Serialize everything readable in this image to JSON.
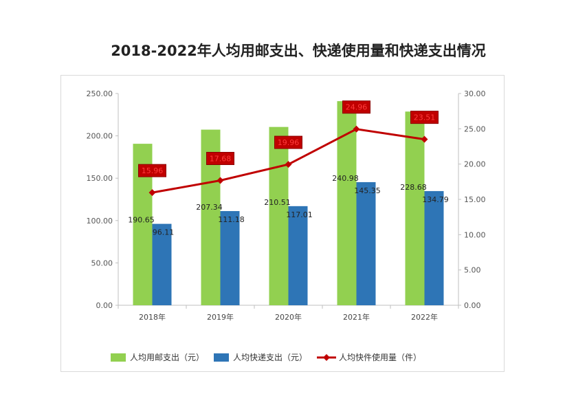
{
  "page": {
    "title": "2018-2022年人均用邮支出、快递使用量和快递支出情况"
  },
  "chart_data": {
    "type": "bar",
    "title": "2018-2022年人均用邮支出、快递使用量和快递支出情况",
    "categories": [
      "2018年",
      "2019年",
      "2020年",
      "2021年",
      "2022年"
    ],
    "series": [
      {
        "name": "人均用邮支出（元）",
        "type": "bar",
        "axis": "left",
        "color": "#92d050",
        "values": [
          190.65,
          207.34,
          210.51,
          240.98,
          228.68
        ],
        "labels": [
          "190.65",
          "207.34",
          "210.51",
          "240.98",
          "228.68"
        ]
      },
      {
        "name": "人均快递支出（元）",
        "type": "bar",
        "axis": "left",
        "color": "#2e75b6",
        "values": [
          96.11,
          111.18,
          117.01,
          145.35,
          134.79
        ],
        "labels": [
          "96.11",
          "111.18",
          "117.01",
          "145.35",
          "134.79"
        ]
      },
      {
        "name": "人均快件使用量（件）",
        "type": "line",
        "axis": "right",
        "color": "#c00000",
        "values": [
          15.96,
          17.68,
          19.96,
          24.96,
          23.51
        ],
        "labels": [
          "15.96",
          "17.68",
          "19.96",
          "24.96",
          "23.51"
        ]
      }
    ],
    "y_left": {
      "range": [
        0,
        250
      ],
      "ticks": [
        "0.00",
        "50.00",
        "100.00",
        "150.00",
        "200.00",
        "250.00"
      ]
    },
    "y_right": {
      "range": [
        0,
        30
      ],
      "ticks": [
        "0.00",
        "5.00",
        "10.00",
        "15.00",
        "20.00",
        "25.00",
        "30.00"
      ]
    },
    "xlabel": "",
    "ylabel": "",
    "grid": false,
    "legend": "bottom"
  }
}
